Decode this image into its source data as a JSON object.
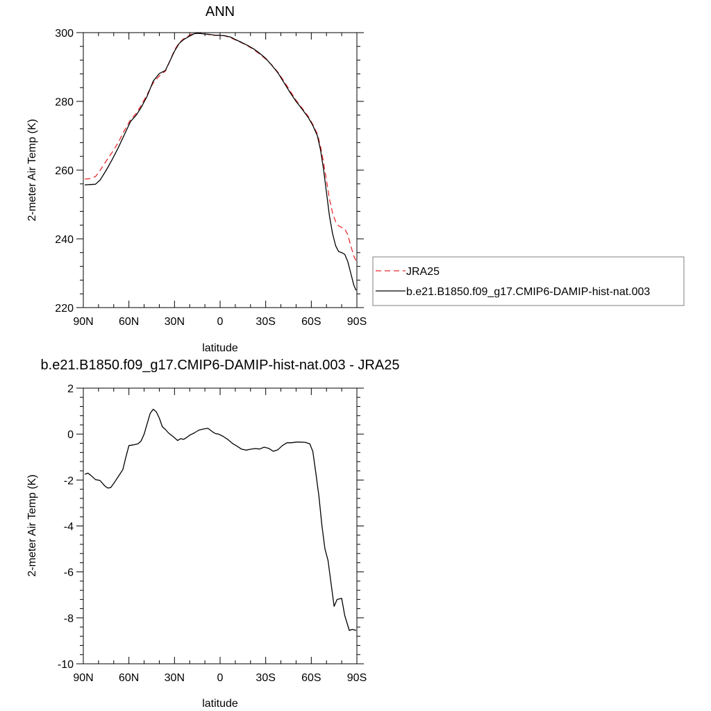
{
  "colors": {
    "jra25": "#e8282b",
    "model": "#000000",
    "axes": "#000000",
    "legend_border": "#7f7f7f"
  },
  "chart_data": [
    {
      "type": "line",
      "title": "ANN",
      "xlabel": "latitude",
      "ylabel": "2-meter Air Temp (K)",
      "xlim": [
        90,
        -90
      ],
      "ylim": [
        220,
        300
      ],
      "x_ticks": [
        {
          "value": 90,
          "label": "90N"
        },
        {
          "value": 60,
          "label": "60N"
        },
        {
          "value": 30,
          "label": "30N"
        },
        {
          "value": 0,
          "label": "0"
        },
        {
          "value": -30,
          "label": "30S"
        },
        {
          "value": -60,
          "label": "60S"
        },
        {
          "value": -90,
          "label": "90S"
        }
      ],
      "y_ticks": [
        {
          "value": 220,
          "label": "220"
        },
        {
          "value": 240,
          "label": "240"
        },
        {
          "value": 260,
          "label": "260"
        },
        {
          "value": 280,
          "label": "280"
        },
        {
          "value": 300,
          "label": "300"
        }
      ],
      "legend_position": "right",
      "series": [
        {
          "name": "JRA25",
          "style": "dashed",
          "color": "#e8282b",
          "x": [
            89,
            86,
            82,
            79,
            75,
            71,
            67,
            63,
            59,
            55,
            52,
            48,
            44,
            40,
            36,
            33,
            30,
            27,
            24,
            20,
            17,
            14,
            10,
            7,
            4,
            0,
            -3,
            -7,
            -10,
            -14,
            -18,
            -22,
            -26,
            -30,
            -34,
            -38,
            -42,
            -46,
            -50,
            -54,
            -58,
            -61,
            -64,
            -66,
            -68,
            -70,
            -72,
            -74,
            -76,
            -78,
            -80,
            -82,
            -84,
            -86,
            -88,
            -89.5
          ],
          "y": [
            257.4,
            257.5,
            258.1,
            259.9,
            262.6,
            265.2,
            268.0,
            271.5,
            274.6,
            276.6,
            278.8,
            282.0,
            285.4,
            287.4,
            288.8,
            291.8,
            294.9,
            297.0,
            298.2,
            299.3,
            299.9,
            299.8,
            299.6,
            299.4,
            299.2,
            299.3,
            299.1,
            298.5,
            297.9,
            297.1,
            296.2,
            295.1,
            293.8,
            292.3,
            290.6,
            288.5,
            285.9,
            283.1,
            280.3,
            278.0,
            275.6,
            273.3,
            270.5,
            267.0,
            262.5,
            257.0,
            251.5,
            247.5,
            245.0,
            243.8,
            243.3,
            242.9,
            241.2,
            238.0,
            235.0,
            233.6
          ]
        },
        {
          "name": "b.e21.B1850.f09_g17.CMIP6-DAMIP-hist-nat.003",
          "style": "solid",
          "color": "#000000",
          "x": [
            89,
            86,
            82,
            79,
            75,
            71,
            67,
            63,
            59,
            55,
            52,
            48,
            44,
            40,
            36,
            33,
            30,
            27,
            24,
            20,
            17,
            14,
            10,
            7,
            4,
            0,
            -3,
            -7,
            -10,
            -14,
            -18,
            -22,
            -26,
            -30,
            -34,
            -38,
            -42,
            -46,
            -50,
            -54,
            -58,
            -61,
            -64,
            -66,
            -68,
            -70,
            -72,
            -74,
            -76,
            -78,
            -80,
            -82,
            -84,
            -86,
            -88,
            -89.5
          ],
          "y": [
            255.7,
            255.8,
            255.9,
            257.1,
            259.9,
            263.1,
            266.5,
            270.3,
            274.1,
            276.1,
            278.2,
            281.5,
            285.9,
            288.1,
            289.0,
            291.8,
            294.6,
            296.8,
            298.0,
            299.0,
            299.7,
            299.8,
            299.6,
            299.5,
            299.3,
            299.2,
            299.1,
            298.7,
            298.0,
            297.2,
            296.3,
            295.3,
            294.0,
            292.5,
            290.5,
            288.3,
            285.5,
            282.6,
            280.0,
            277.7,
            275.3,
            273.0,
            270.0,
            266.0,
            260.5,
            253.5,
            246.5,
            241.5,
            238.0,
            236.3,
            236.0,
            235.5,
            233.4,
            230.0,
            226.5,
            225.0
          ]
        }
      ]
    },
    {
      "type": "line",
      "title": "b.e21.B1850.f09_g17.CMIP6-DAMIP-hist-nat.003 - JRA25",
      "xlabel": "latitude",
      "ylabel": "2-meter Air Temp (K)",
      "xlim": [
        90,
        -90
      ],
      "ylim": [
        -10,
        2
      ],
      "x_ticks": [
        {
          "value": 90,
          "label": "90N"
        },
        {
          "value": 60,
          "label": "60N"
        },
        {
          "value": 30,
          "label": "30N"
        },
        {
          "value": 0,
          "label": "0"
        },
        {
          "value": -30,
          "label": "30S"
        },
        {
          "value": -60,
          "label": "60S"
        },
        {
          "value": -90,
          "label": "90S"
        }
      ],
      "y_ticks": [
        {
          "value": -10,
          "label": "-10"
        },
        {
          "value": -8,
          "label": "-8"
        },
        {
          "value": -6,
          "label": "-6"
        },
        {
          "value": -4,
          "label": "-4"
        },
        {
          "value": -2,
          "label": "-2"
        },
        {
          "value": 0,
          "label": "0"
        },
        {
          "value": 2,
          "label": "2"
        }
      ],
      "series": [
        {
          "style": "solid",
          "color": "#000000",
          "x": [
            89,
            87,
            85,
            82,
            79,
            76,
            74,
            72,
            70,
            67,
            64,
            62,
            60,
            57,
            54,
            52,
            50,
            48,
            46,
            44,
            42,
            40,
            38,
            36,
            34,
            31,
            28,
            26,
            24,
            22,
            20,
            17,
            14,
            11,
            8,
            5,
            3,
            1,
            -2,
            -5,
            -8,
            -11,
            -14,
            -17,
            -20,
            -23,
            -26,
            -29,
            -32,
            -35,
            -38,
            -41,
            -44,
            -47,
            -50,
            -53,
            -56,
            -59,
            -61,
            -63,
            -65,
            -67,
            -69,
            -71,
            -73,
            -75,
            -77,
            -80,
            -82,
            -85,
            -87,
            -89.5
          ],
          "y": [
            -1.75,
            -1.7,
            -1.8,
            -1.98,
            -2.02,
            -2.25,
            -2.35,
            -2.33,
            -2.15,
            -1.85,
            -1.55,
            -1.0,
            -0.5,
            -0.47,
            -0.42,
            -0.3,
            0.0,
            0.45,
            0.9,
            1.08,
            0.97,
            0.7,
            0.32,
            0.2,
            0.05,
            -0.1,
            -0.28,
            -0.2,
            -0.23,
            -0.15,
            -0.05,
            0.05,
            0.17,
            0.22,
            0.25,
            0.1,
            0.02,
            0.0,
            -0.1,
            -0.23,
            -0.4,
            -0.52,
            -0.65,
            -0.7,
            -0.66,
            -0.63,
            -0.65,
            -0.57,
            -0.62,
            -0.75,
            -0.68,
            -0.5,
            -0.38,
            -0.38,
            -0.35,
            -0.35,
            -0.36,
            -0.42,
            -0.75,
            -1.7,
            -2.7,
            -4.0,
            -5.0,
            -5.5,
            -6.5,
            -7.5,
            -7.2,
            -7.15,
            -7.9,
            -8.55,
            -8.5,
            -8.55
          ]
        }
      ]
    }
  ]
}
